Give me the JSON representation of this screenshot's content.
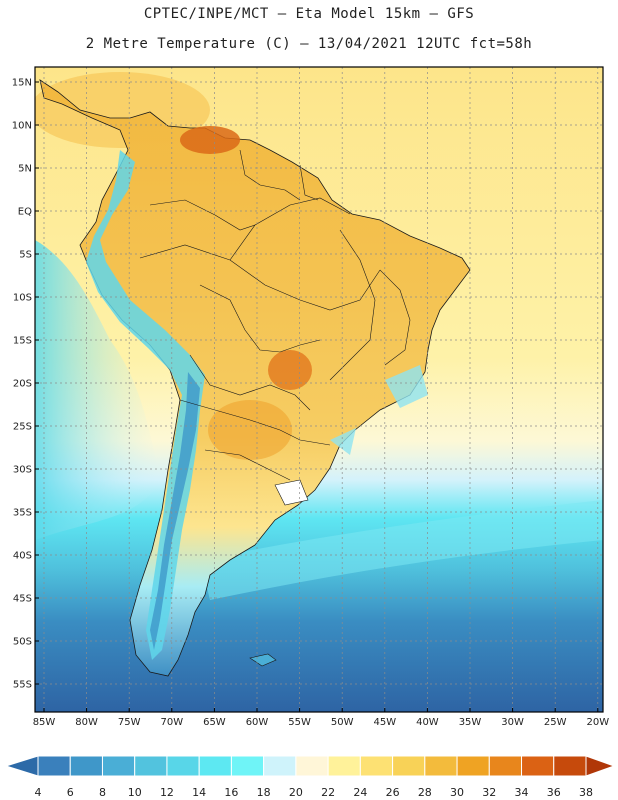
{
  "header": {
    "line1": "CPTEC/INPE/MCT –  Eta Model 15km – GFS",
    "line2": "2 Metre Temperature (C) – 13/04/2021 12UTC fct=58h"
  },
  "axes": {
    "lat_labels": [
      "15N",
      "10N",
      "5N",
      "EQ",
      "5S",
      "10S",
      "15S",
      "20S",
      "25S",
      "30S",
      "35S",
      "40S",
      "45S",
      "50S",
      "55S"
    ],
    "lon_labels": [
      "85W",
      "80W",
      "75W",
      "70W",
      "65W",
      "60W",
      "55W",
      "50W",
      "45W",
      "40W",
      "35W",
      "30W",
      "25W",
      "20W"
    ]
  },
  "colorbar": {
    "labels": [
      "4",
      "6",
      "8",
      "10",
      "12",
      "14",
      "16",
      "18",
      "20",
      "22",
      "24",
      "26",
      "28",
      "30",
      "32",
      "34",
      "36",
      "38"
    ],
    "colors": [
      "#2c6aa8",
      "#3a80bc",
      "#3f97c9",
      "#4aaed6",
      "#52c3de",
      "#58d6e8",
      "#5de8f2",
      "#6ff4f7",
      "#cff3fb",
      "#fff6d8",
      "#fff29a",
      "#fde173",
      "#f8d257",
      "#f3bb3c",
      "#efa323",
      "#e8861c",
      "#db6214",
      "#c64a0c",
      "#b03708"
    ]
  },
  "palette": {
    "ocean": "#fdf4c2",
    "frame": "#000000",
    "grid": "#8c8c8c"
  }
}
